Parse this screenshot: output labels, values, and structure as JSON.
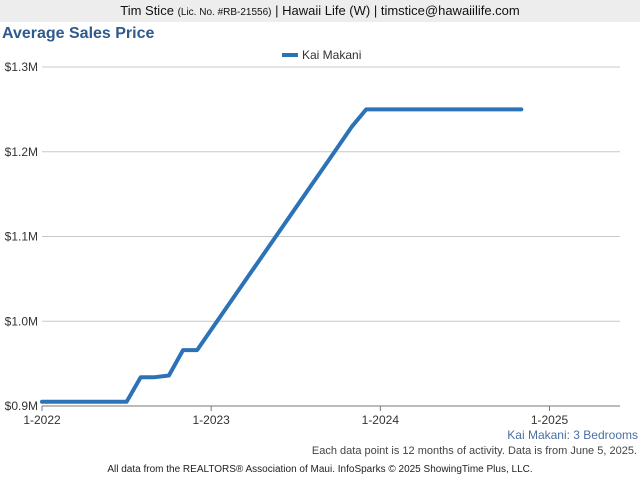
{
  "header": {
    "agent_name": "Tim Stice",
    "license": "(Lic. No. #RB-21556)",
    "rest": "| Hawaii Life (W) | timstice@hawaiilife.com"
  },
  "chart_data": {
    "type": "line",
    "title": "Average Sales Price",
    "subtitle": "Kai Makani: 3 Bedrooms",
    "note": "Each data point is 12 months of activity. Data is from June 5, 2025.",
    "xlabel": "",
    "ylabel": "",
    "x_ticks": [
      "1-2022",
      "1-2023",
      "1-2024",
      "1-2025"
    ],
    "y_ticks": [
      "$0.9M",
      "$1.0M",
      "$1.1M",
      "$1.2M",
      "$1.3M"
    ],
    "ylim": [
      900000,
      1300000
    ],
    "xlim": [
      "2022-01",
      "2025-06"
    ],
    "grid": true,
    "legend_position": "top-center",
    "series": [
      {
        "name": "Kai Makani",
        "color": "#2b73b6",
        "x": [
          "2022-01",
          "2022-02",
          "2022-03",
          "2022-04",
          "2022-05",
          "2022-06",
          "2022-07",
          "2022-08",
          "2022-09",
          "2022-10",
          "2022-11",
          "2022-12",
          "2023-01",
          "2023-02",
          "2023-03",
          "2023-04",
          "2023-05",
          "2023-06",
          "2023-07",
          "2023-08",
          "2023-09",
          "2023-10",
          "2023-11",
          "2023-12",
          "2024-01",
          "2024-02",
          "2024-03",
          "2024-04",
          "2024-05",
          "2024-06",
          "2024-07",
          "2024-08",
          "2024-09",
          "2024-10",
          "2024-11"
        ],
        "values": [
          905000,
          905000,
          905000,
          905000,
          905000,
          905000,
          905000,
          934000,
          934000,
          936000,
          966000,
          966000,
          990000,
          1014000,
          1038000,
          1062000,
          1086000,
          1110000,
          1134000,
          1158000,
          1182000,
          1206000,
          1230000,
          1250000,
          1250000,
          1250000,
          1250000,
          1250000,
          1250000,
          1250000,
          1250000,
          1250000,
          1250000,
          1250000,
          1250000
        ]
      }
    ]
  },
  "footer": "All data from the REALTORS® Association of Maui. InfoSparks © 2025 ShowingTime Plus, LLC."
}
